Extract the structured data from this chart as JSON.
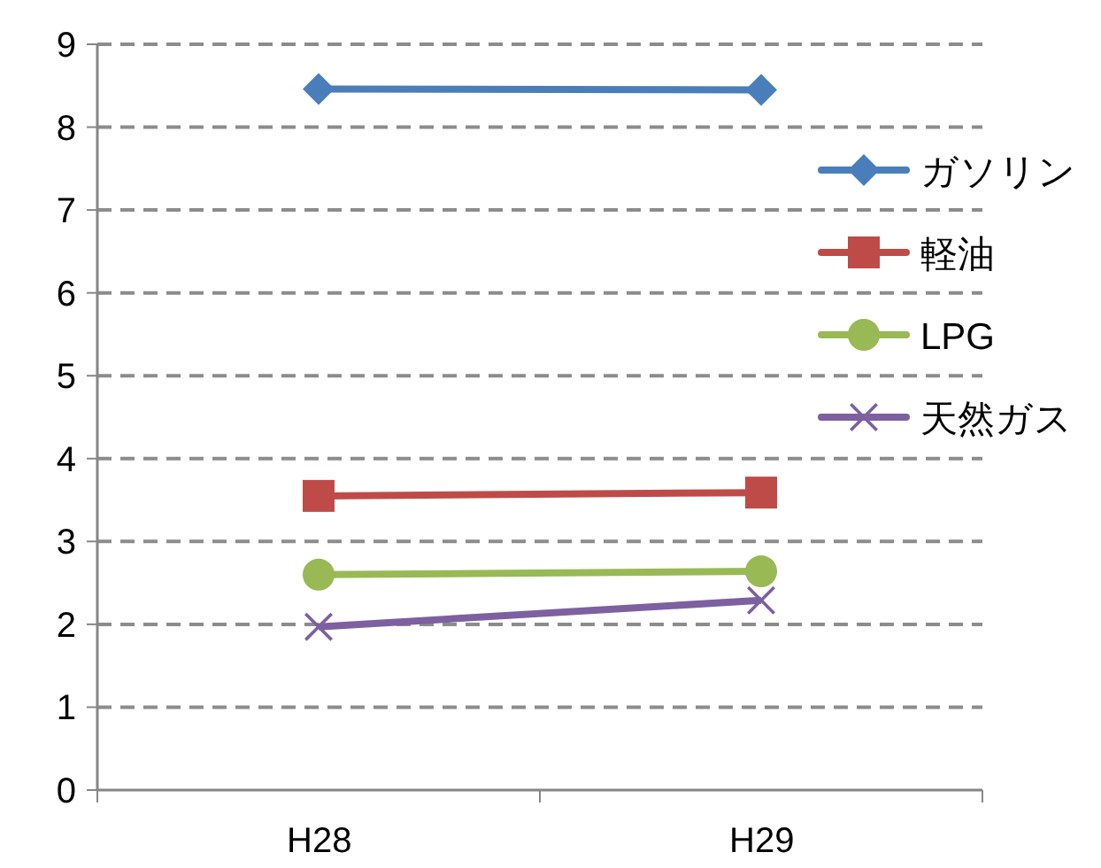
{
  "chart_data": {
    "type": "line",
    "categories": [
      "H28",
      "H29"
    ],
    "series": [
      {
        "name": "ガソリン",
        "color": "#4a7ebb",
        "marker": "diamond",
        "values": [
          8.46,
          8.45
        ]
      },
      {
        "name": "軽油",
        "color": "#be4b48",
        "marker": "square",
        "values": [
          3.55,
          3.59
        ]
      },
      {
        "name": "LPG",
        "color": "#98b954",
        "marker": "circle",
        "values": [
          2.6,
          2.64
        ]
      },
      {
        "name": "天然ガス",
        "color": "#7d60a0",
        "marker": "cross",
        "values": [
          1.97,
          2.29
        ]
      }
    ],
    "ylim": [
      0,
      9
    ],
    "yticks": [
      0,
      1,
      2,
      3,
      4,
      5,
      6,
      7,
      8,
      9
    ],
    "grid": "y",
    "legend": "right"
  }
}
